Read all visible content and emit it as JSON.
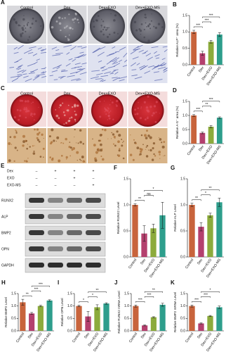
{
  "panel_a": {
    "letter": "A",
    "columns": [
      "Control",
      "Dex",
      "Dex+EXO",
      "Dex+EXO-MS"
    ]
  },
  "panel_c": {
    "letter": "C",
    "columns": [
      "Control",
      "Dex",
      "Dex+EXO",
      "Dex+EXO-MS"
    ]
  },
  "panel_e": {
    "letter": "E",
    "treatments": [
      {
        "name": "Dex",
        "signs": [
          "–",
          "+",
          "+",
          "+"
        ]
      },
      {
        "name": "EXO",
        "signs": [
          "–",
          "–",
          "+",
          "–"
        ]
      },
      {
        "name": "EXO-MS",
        "signs": [
          "–",
          "–",
          "–",
          "+"
        ]
      }
    ],
    "proteins": [
      "RUNX2",
      "ALP",
      "BMP2",
      "OPN",
      "GAPDH"
    ]
  },
  "chart_data": [
    {
      "type": "bar",
      "panel": "B",
      "ylabel": "Relative ALP⁺ area (%)",
      "categories": [
        "Control",
        "Dex",
        "Dex+EXO",
        "Dex+EXO-MS"
      ],
      "values": [
        1.0,
        0.35,
        0.7,
        0.92
      ],
      "errors": [
        0.05,
        0.06,
        0.04,
        0.06
      ],
      "colors": [
        "#c8643c",
        "#b4406e",
        "#8cab3c",
        "#2e9e8c"
      ],
      "ylim": [
        0,
        1.5
      ],
      "yticks": [
        {
          "value": 0,
          "label": "0.0"
        },
        0.5,
        {
          "value": 1,
          "label": "1.0"
        },
        1.5
      ],
      "significance": [
        {
          "between": [
            "Control",
            "Dex"
          ],
          "label": "***"
        },
        {
          "between": [
            "Dex",
            "Dex+EXO"
          ],
          "label": "***"
        },
        {
          "between": [
            "Dex",
            "Dex+EXO-MS"
          ],
          "label": "***"
        }
      ]
    },
    {
      "type": "bar",
      "panel": "D",
      "ylabel": "Relative A-S⁺ area (%)",
      "categories": [
        "Control",
        "Dex",
        "Dex+EXO",
        "Dex+EXO-MS"
      ],
      "values": [
        1.0,
        0.38,
        0.6,
        0.92
      ],
      "errors": [
        0.03,
        0.03,
        0.04,
        0.03
      ],
      "colors": [
        "#c8643c",
        "#b4406e",
        "#8cab3c",
        "#2e9e8c"
      ],
      "ylim": [
        0,
        1.5
      ],
      "yticks": [
        {
          "value": 0,
          "label": "0.0"
        },
        0.5,
        {
          "value": 1,
          "label": "1.0"
        },
        1.5
      ],
      "significance": [
        {
          "between": [
            "Control",
            "Dex"
          ],
          "label": "***"
        },
        {
          "between": [
            "Dex",
            "Dex+EXO"
          ],
          "label": "**"
        },
        {
          "between": [
            "Dex",
            "Dex+EXO-MS"
          ],
          "label": "***"
        }
      ]
    },
    {
      "type": "bar",
      "panel": "F",
      "ylabel": "Relative RUNX2 Level",
      "categories": [
        "Control",
        "Dex",
        "Dex+EXO",
        "Dex+EXO-MS"
      ],
      "values": [
        1.0,
        0.45,
        0.55,
        0.8
      ],
      "errors": [
        0.02,
        0.15,
        0.08,
        0.25
      ],
      "colors": [
        "#c8643c",
        "#b4406e",
        "#8cab3c",
        "#2e9e8c"
      ],
      "ylim": [
        0,
        1.5
      ],
      "yticks": [
        {
          "value": 0,
          "label": "0.0"
        },
        0.5,
        {
          "value": 1,
          "label": "1.0"
        },
        1.5
      ],
      "significance": [
        {
          "between": [
            "Control",
            "Dex"
          ],
          "label": "**"
        },
        {
          "between": [
            "Dex",
            "Dex+EXO"
          ],
          "label": "ns"
        },
        {
          "between": [
            "Dex",
            "Dex+EXO-MS"
          ],
          "label": "*"
        }
      ]
    },
    {
      "type": "bar",
      "panel": "G",
      "ylabel": "Relative ALP Level",
      "categories": [
        "Control",
        "Dex",
        "Dex+EXO",
        "Dex+EXO-MS"
      ],
      "values": [
        1.0,
        0.58,
        0.8,
        1.05
      ],
      "errors": [
        0.03,
        0.08,
        0.04,
        0.08
      ],
      "colors": [
        "#c8643c",
        "#b4406e",
        "#8cab3c",
        "#2e9e8c"
      ],
      "ylim": [
        0,
        1.5
      ],
      "yticks": [
        {
          "value": 0,
          "label": "0.0"
        },
        0.5,
        {
          "value": 1,
          "label": "1.0"
        },
        1.5
      ],
      "significance": [
        {
          "between": [
            "Control",
            "Dex"
          ],
          "label": "**"
        },
        {
          "between": [
            "Dex",
            "Dex+EXO"
          ],
          "label": "*"
        },
        {
          "between": [
            "Dex",
            "Dex+EXO-MS"
          ],
          "label": "**"
        }
      ]
    },
    {
      "type": "bar",
      "panel": "H",
      "ylabel": "Relative BMP2 Level",
      "categories": [
        "Control",
        "Dex",
        "Dex+EXO",
        "Dex+EXO-MS"
      ],
      "values": [
        1.15,
        0.7,
        1.0,
        1.22
      ],
      "errors": [
        0.12,
        0.04,
        0.03,
        0.03
      ],
      "colors": [
        "#c8643c",
        "#b4406e",
        "#8cab3c",
        "#2e9e8c"
      ],
      "ylim": [
        0,
        1.5
      ],
      "yticks": [
        {
          "value": 0,
          "label": "0.0"
        },
        0.5,
        {
          "value": 1,
          "label": "1.0"
        },
        1.5
      ],
      "significance": [
        {
          "between": [
            "Control",
            "Dex"
          ],
          "label": "**"
        },
        {
          "between": [
            "Dex",
            "Dex+EXO"
          ],
          "label": "***"
        },
        {
          "between": [
            "Dex",
            "Dex+EXO-MS"
          ],
          "label": "***"
        }
      ]
    },
    {
      "type": "bar",
      "panel": "I",
      "ylabel": "Relative OPN Level",
      "categories": [
        "Control",
        "Dex",
        "Dex+EXO",
        "Dex+EXO-MS"
      ],
      "values": [
        1.0,
        0.58,
        0.95,
        1.1
      ],
      "errors": [
        0.03,
        0.2,
        0.1,
        0.03
      ],
      "colors": [
        "#c8643c",
        "#b4406e",
        "#8cab3c",
        "#2e9e8c"
      ],
      "ylim": [
        0,
        1.5
      ],
      "yticks": [
        {
          "value": 0,
          "label": "0.0"
        },
        0.5,
        {
          "value": 1,
          "label": "1.0"
        },
        1.5
      ],
      "significance": [
        {
          "between": [
            "Control",
            "Dex"
          ],
          "label": "*"
        },
        {
          "between": [
            "Dex",
            "Dex+EXO"
          ],
          "label": "*"
        },
        {
          "between": [
            "Dex",
            "Dex+EXO-MS"
          ],
          "label": "**"
        }
      ]
    },
    {
      "type": "bar",
      "panel": "J",
      "ylabel": "Relative RUNX2 mRNA Level",
      "categories": [
        "Control",
        "Dex",
        "Dex+EXO",
        "Dex+EXO-MS"
      ],
      "values": [
        1.0,
        0.22,
        0.55,
        1.05
      ],
      "errors": [
        0.04,
        0.02,
        0.02,
        0.06
      ],
      "colors": [
        "#c8643c",
        "#b4406e",
        "#8cab3c",
        "#2e9e8c"
      ],
      "ylim": [
        0,
        1.5
      ],
      "yticks": [
        {
          "value": 0,
          "label": "0.0"
        },
        0.5,
        {
          "value": 1,
          "label": "1.0"
        },
        1.5
      ],
      "significance": [
        {
          "between": [
            "Control",
            "Dex"
          ],
          "label": "***"
        },
        {
          "between": [
            "Dex",
            "Dex+EXO"
          ],
          "label": "***"
        },
        {
          "between": [
            "Dex",
            "Dex+EXO-MS"
          ],
          "label": "**"
        }
      ]
    },
    {
      "type": "bar",
      "panel": "K",
      "ylabel": "Relative BMP2 mRNA Level",
      "categories": [
        "Control",
        "Dex",
        "Dex+EXO",
        "Dex+EXO-MS"
      ],
      "values": [
        1.0,
        0.3,
        0.6,
        0.95
      ],
      "errors": [
        0.04,
        0.02,
        0.02,
        0.05
      ],
      "colors": [
        "#c8643c",
        "#b4406e",
        "#8cab3c",
        "#2e9e8c"
      ],
      "ylim": [
        0,
        1.5
      ],
      "yticks": [
        {
          "value": 0,
          "label": "0.0"
        },
        0.5,
        {
          "value": 1,
          "label": "1.0"
        },
        1.5
      ],
      "significance": [
        {
          "between": [
            "Control",
            "Dex"
          ],
          "label": "***"
        },
        {
          "between": [
            "Dex",
            "Dex+EXO"
          ],
          "label": "***"
        },
        {
          "between": [
            "Dex",
            "Dex+EXO-MS"
          ],
          "label": "*"
        }
      ]
    }
  ]
}
